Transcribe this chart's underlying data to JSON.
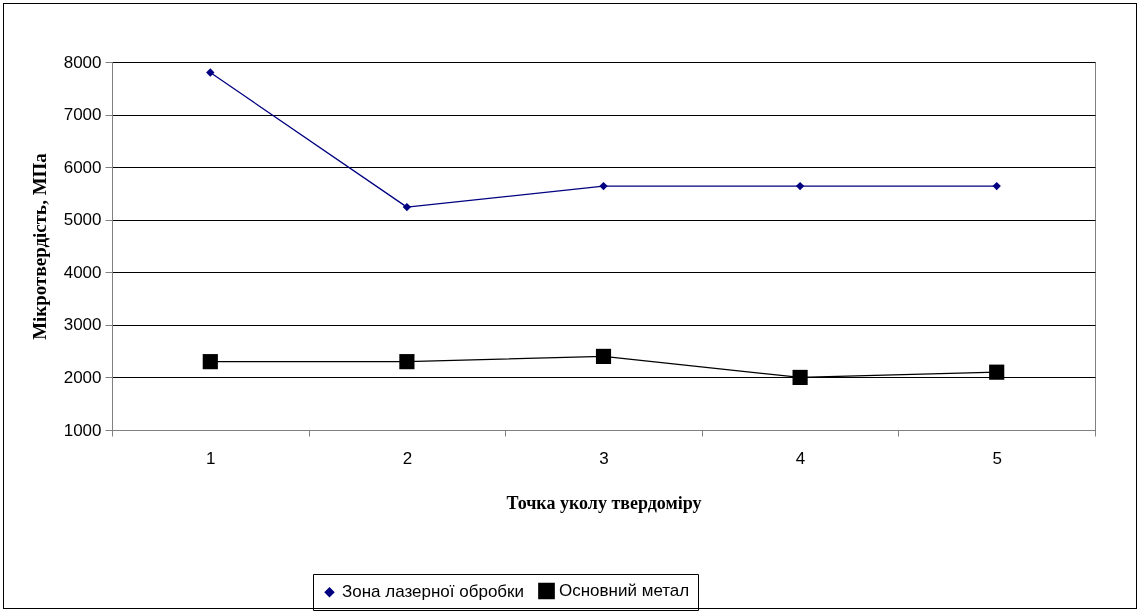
{
  "chart_data": {
    "type": "line",
    "xlabel": "Точка уколу твердоміру",
    "ylabel": "Мікротвердість, МПа",
    "categories": [
      "1",
      "2",
      "3",
      "4",
      "5"
    ],
    "series": [
      {
        "name": "Зона лазерної обробки",
        "color": "#000080",
        "marker": "diamond",
        "values": [
          7800,
          5240,
          5640,
          5640,
          5640
        ]
      },
      {
        "name": "Основний метал",
        "color": "#000000",
        "marker": "square",
        "values": [
          2300,
          2300,
          2400,
          2000,
          2100
        ]
      }
    ],
    "ylim": [
      1000,
      8000
    ],
    "yticks": [
      1000,
      2000,
      3000,
      4000,
      5000,
      6000,
      7000,
      8000
    ],
    "grid": "y",
    "legend": "bottom"
  }
}
